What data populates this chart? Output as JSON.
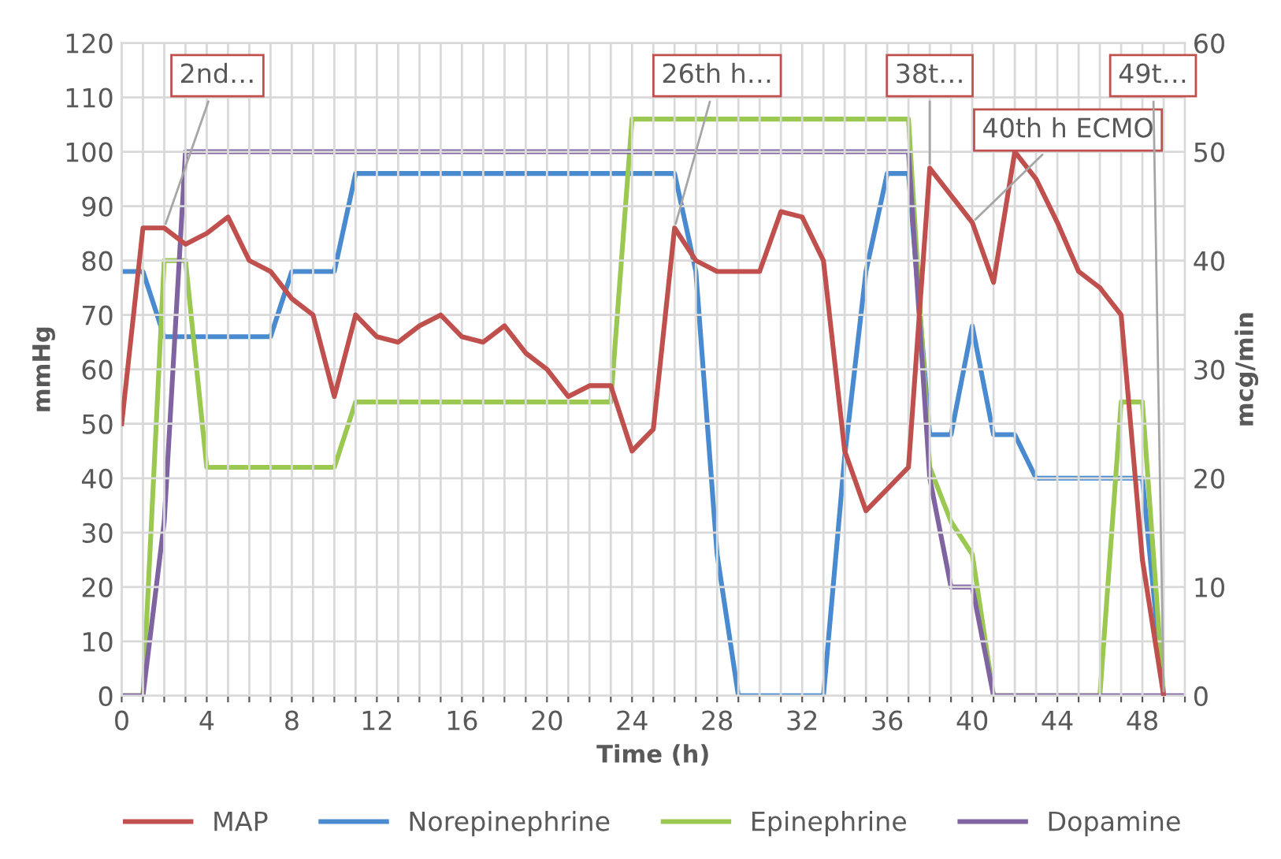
{
  "chart_data": {
    "type": "line",
    "xlabel": "Time (h)",
    "ylabel": "mmHg",
    "y2label": "mcg/min",
    "x": [
      0,
      1,
      2,
      3,
      4,
      5,
      6,
      7,
      8,
      9,
      10,
      11,
      12,
      13,
      14,
      15,
      16,
      17,
      18,
      19,
      20,
      21,
      22,
      23,
      24,
      25,
      26,
      27,
      28,
      29,
      30,
      31,
      32,
      33,
      34,
      35,
      36,
      37,
      38,
      39,
      40,
      41,
      42,
      43,
      44,
      45,
      46,
      47,
      48,
      49,
      50
    ],
    "series": [
      {
        "name": "MAP",
        "color": "#c0504d",
        "values": [
          50,
          86,
          86,
          83,
          85,
          88,
          80,
          78,
          73,
          70,
          55,
          70,
          66,
          65,
          68,
          70,
          66,
          65,
          68,
          63,
          60,
          55,
          57,
          57,
          45,
          49,
          86,
          80,
          78,
          78,
          78,
          89,
          88,
          80,
          45,
          34,
          38,
          42,
          97,
          92,
          87,
          76,
          100,
          95,
          87,
          78,
          75,
          70,
          25,
          0,
          null
        ]
      },
      {
        "name": "Norepinephrine",
        "color": "#4a8bd0",
        "axis": "y2",
        "values": [
          39,
          39,
          33,
          33,
          33,
          33,
          33,
          33,
          39,
          39,
          39,
          48,
          48,
          48,
          48,
          48,
          48,
          48,
          48,
          48,
          48,
          48,
          48,
          48,
          48,
          48,
          48,
          39,
          13,
          0,
          0,
          0,
          0,
          0,
          22,
          39,
          48,
          48,
          24,
          24,
          34,
          24,
          24,
          20,
          20,
          20,
          20,
          20,
          20,
          0,
          null
        ]
      },
      {
        "name": "Epinephrine",
        "color": "#9bc850",
        "axis": "y2",
        "values": [
          0,
          0,
          40,
          40,
          21,
          21,
          21,
          21,
          21,
          21,
          21,
          27,
          27,
          27,
          27,
          27,
          27,
          27,
          27,
          27,
          27,
          27,
          27,
          27,
          53,
          53,
          53,
          53,
          53,
          53,
          53,
          53,
          53,
          53,
          53,
          53,
          53,
          53,
          21,
          16,
          13,
          0,
          0,
          0,
          0,
          0,
          0,
          27,
          27,
          0,
          null
        ]
      },
      {
        "name": "Dopamine",
        "color": "#8064a2",
        "axis": "y2",
        "values": [
          0,
          0,
          16,
          50,
          50,
          50,
          50,
          50,
          50,
          50,
          50,
          50,
          50,
          50,
          50,
          50,
          50,
          50,
          50,
          50,
          50,
          50,
          50,
          50,
          50,
          50,
          50,
          50,
          50,
          50,
          50,
          50,
          50,
          50,
          50,
          50,
          50,
          50,
          20,
          10,
          10,
          0,
          0,
          0,
          0,
          0,
          0,
          0,
          0,
          0,
          0
        ]
      }
    ],
    "xlim": [
      0,
      50
    ],
    "ylim": [
      0,
      120
    ],
    "y2lim": [
      0,
      60
    ],
    "xticks": [
      0,
      {
        "value": 1,
        "label": null
      },
      {
        "value": 2,
        "label": null
      },
      {
        "value": 3,
        "label": null
      },
      4,
      {
        "value": 5,
        "label": null
      },
      {
        "value": 6,
        "label": null
      },
      {
        "value": 7,
        "label": null
      },
      8,
      {
        "value": 9,
        "label": null
      },
      {
        "value": 10,
        "label": null
      },
      {
        "value": 11,
        "label": null
      },
      12,
      {
        "value": 13,
        "label": null
      },
      {
        "value": 14,
        "label": null
      },
      {
        "value": 15,
        "label": null
      },
      16,
      {
        "value": 17,
        "label": null
      },
      {
        "value": 18,
        "label": null
      },
      {
        "value": 19,
        "label": null
      },
      20,
      {
        "value": 21,
        "label": null
      },
      {
        "value": 22,
        "label": null
      },
      {
        "value": 23,
        "label": null
      },
      24,
      {
        "value": 25,
        "label": null
      },
      {
        "value": 26,
        "label": null
      },
      {
        "value": 27,
        "label": null
      },
      28,
      {
        "value": 29,
        "label": null
      },
      {
        "value": 30,
        "label": null
      },
      {
        "value": 31,
        "label": null
      },
      32,
      {
        "value": 33,
        "label": null
      },
      {
        "value": 34,
        "label": null
      },
      {
        "value": 35,
        "label": null
      },
      36,
      {
        "value": 37,
        "label": null
      },
      {
        "value": 38,
        "label": null
      },
      {
        "value": 39,
        "label": null
      },
      40,
      {
        "value": 41,
        "label": null
      },
      {
        "value": 42,
        "label": null
      },
      {
        "value": 43,
        "label": null
      },
      44,
      {
        "value": 45,
        "label": null
      },
      {
        "value": 46,
        "label": null
      },
      {
        "value": 47,
        "label": null
      },
      48,
      {
        "value": 49,
        "label": null
      },
      {
        "value": 50,
        "label": null
      }
    ],
    "yticks": [
      0,
      10,
      20,
      30,
      40,
      50,
      60,
      70,
      80,
      90,
      100,
      110,
      120
    ],
    "y2ticks": [
      0,
      10,
      20,
      30,
      40,
      50,
      60
    ],
    "annotations": [
      {
        "text": "2nd…",
        "x": 2,
        "y": 86
      },
      {
        "text": "26th h…",
        "x": 26,
        "y": 86
      },
      {
        "text": "38t…",
        "x": 38,
        "y": 97
      },
      {
        "text": "40th h ECMO",
        "x": 40,
        "y": 87
      },
      {
        "text": "49t…",
        "x": 49,
        "y": 0
      }
    ],
    "grid": true,
    "legend": "bottom",
    "marker": "none",
    "line_style": "solid"
  }
}
